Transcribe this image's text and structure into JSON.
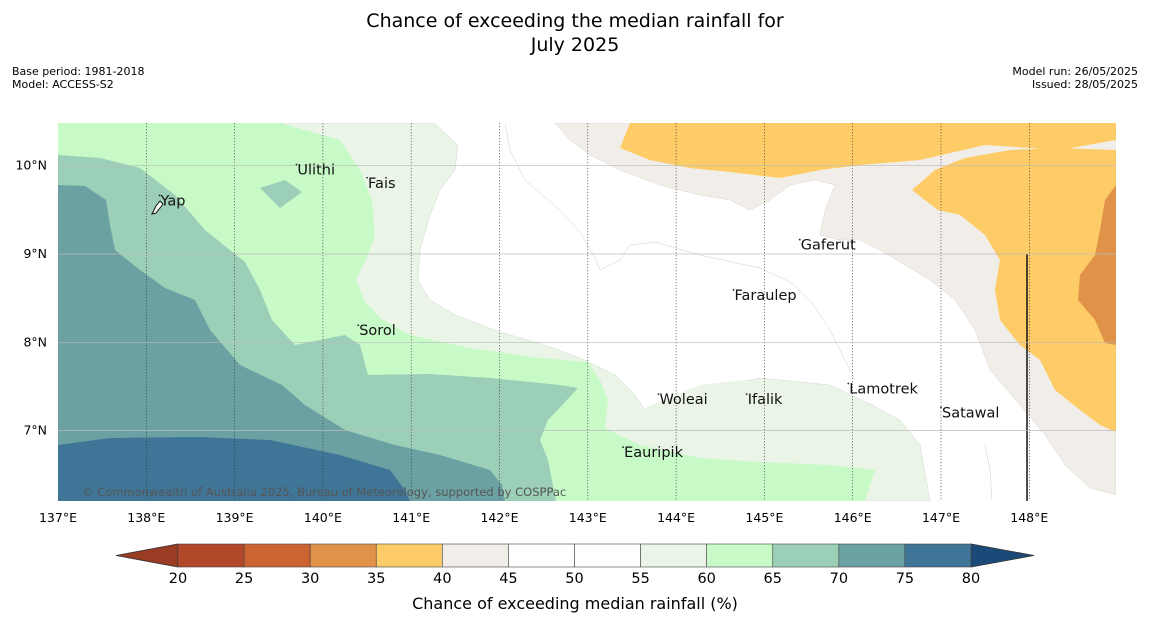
{
  "title_line1": "Chance of exceeding the median rainfall for",
  "title_line2": "July 2025",
  "meta_left": [
    "Base period: 1981-2018",
    "Model: ACCESS-S2"
  ],
  "meta_right": [
    "Model run: 26/05/2025",
    "Issued: 28/05/2025"
  ],
  "copyright": "© Commonwealth of Australia 2025, Bureau of Meteorology, supported by COSPPac",
  "map_extent": {
    "lon": [
      137.0,
      149.0
    ],
    "lat": [
      6.2,
      10.5
    ]
  },
  "lon_ticks": [
    {
      "v": 137,
      "label": "137°E"
    },
    {
      "v": 138,
      "label": "138°E"
    },
    {
      "v": 139,
      "label": "139°E"
    },
    {
      "v": 140,
      "label": "140°E"
    },
    {
      "v": 141,
      "label": "141°E"
    },
    {
      "v": 142,
      "label": "142°E"
    },
    {
      "v": 143,
      "label": "143°E"
    },
    {
      "v": 144,
      "label": "144°E"
    },
    {
      "v": 145,
      "label": "145°E"
    },
    {
      "v": 146,
      "label": "146°E"
    },
    {
      "v": 147,
      "label": "147°E"
    },
    {
      "v": 148,
      "label": "148°E"
    }
  ],
  "lat_ticks": [
    {
      "v": 10,
      "label": "10°N"
    },
    {
      "v": 9,
      "label": "9°N"
    },
    {
      "v": 8,
      "label": "8°N"
    },
    {
      "v": 7,
      "label": "7°N"
    }
  ],
  "places": [
    {
      "name": "Ulithi",
      "lon": 139.7,
      "lat": 9.9
    },
    {
      "name": "Fais",
      "lon": 140.5,
      "lat": 9.75
    },
    {
      "name": "Yap",
      "lon": 138.15,
      "lat": 9.55
    },
    {
      "name": "Gaferut",
      "lon": 145.4,
      "lat": 9.05
    },
    {
      "name": "Faraulep",
      "lon": 144.65,
      "lat": 8.48
    },
    {
      "name": "Sorol",
      "lon": 140.4,
      "lat": 8.08
    },
    {
      "name": "Woleai",
      "lon": 143.8,
      "lat": 7.3
    },
    {
      "name": "Ifalik",
      "lon": 144.8,
      "lat": 7.3
    },
    {
      "name": "Lamotrek",
      "lon": 145.95,
      "lat": 7.42
    },
    {
      "name": "Satawal",
      "lon": 147.0,
      "lat": 7.15
    },
    {
      "name": "Eauripik",
      "lon": 143.4,
      "lat": 6.7
    }
  ],
  "colorbar": {
    "title": "Chance of exceeding median rainfall (%)",
    "ticks": [
      "20",
      "25",
      "30",
      "35",
      "40",
      "45",
      "50",
      "55",
      "60",
      "65",
      "70",
      "75",
      "80"
    ],
    "under_color": "#9a3b24",
    "over_color": "#1b4a78",
    "bins": [
      "#b1482a",
      "#cd6332",
      "#e09248",
      "#fecc66",
      "#f1ede8",
      "#ffffff",
      "#ffffff",
      "#eaf4e7",
      "#c8fac8",
      "#9ccfb7",
      "#6ca1a3",
      "#3f7698"
    ]
  },
  "colors": {
    "c35_40": "#fecc66",
    "c30_35": "#e09248",
    "c40_45": "#f1ede8",
    "c45_55": "#ffffff",
    "c55_60": "#eaf4e7",
    "c60_65": "#c8fac8",
    "c65_70": "#9ccfb7",
    "c70_75": "#6ca1a3",
    "c75_80": "#3f7698"
  }
}
